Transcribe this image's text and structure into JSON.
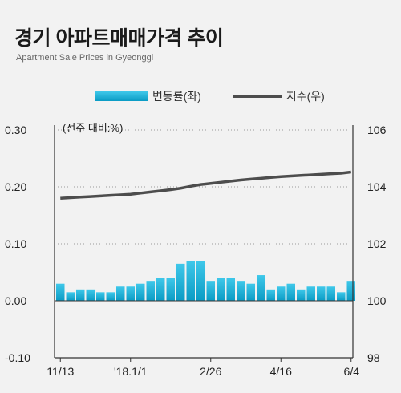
{
  "title": "경기 아파트매매가격 추이",
  "subtitle": "Apartment Sale Prices in Gyeonggi",
  "legend": {
    "bar": "변동률(좌)",
    "line": "지수(우)"
  },
  "unit_note": "(전주 대비:%)",
  "colors": {
    "bar_top": "#3fc8ea",
    "bar_bottom": "#0a9bc4",
    "line": "#4d4d4d",
    "axis": "#333333"
  },
  "chart_data": {
    "type": "bar+line",
    "unit_note": "(전주 대비:%)",
    "left_axis": {
      "min": -0.1,
      "max": 0.3,
      "ticks": [
        "-0.10",
        "0.00",
        "0.10",
        "0.20",
        "0.30"
      ]
    },
    "right_axis": {
      "min": 98,
      "max": 106,
      "ticks": [
        "98",
        "100",
        "102",
        "104",
        "106"
      ]
    },
    "x_tick_labels": [
      "11/13",
      "'18.1/1",
      "2/26",
      "4/16",
      "6/4"
    ],
    "x_tick_index": [
      0,
      7,
      15,
      22,
      29
    ],
    "series": [
      {
        "name": "변동률(좌)",
        "type": "bar",
        "axis": "left",
        "values": [
          0.03,
          0.015,
          0.02,
          0.02,
          0.015,
          0.015,
          0.025,
          0.025,
          0.03,
          0.035,
          0.04,
          0.04,
          0.065,
          0.07,
          0.07,
          0.035,
          0.04,
          0.04,
          0.035,
          0.03,
          0.045,
          0.02,
          0.025,
          0.03,
          0.02,
          0.025,
          0.025,
          0.025,
          0.015,
          0.035
        ]
      },
      {
        "name": "지수(우)",
        "type": "line",
        "axis": "right",
        "values": [
          103.6,
          103.62,
          103.64,
          103.66,
          103.68,
          103.7,
          103.72,
          103.74,
          103.78,
          103.82,
          103.86,
          103.9,
          103.95,
          104.02,
          104.08,
          104.12,
          104.16,
          104.2,
          104.24,
          104.27,
          104.3,
          104.33,
          104.36,
          104.38,
          104.4,
          104.42,
          104.44,
          104.46,
          104.48,
          104.52
        ]
      }
    ]
  }
}
